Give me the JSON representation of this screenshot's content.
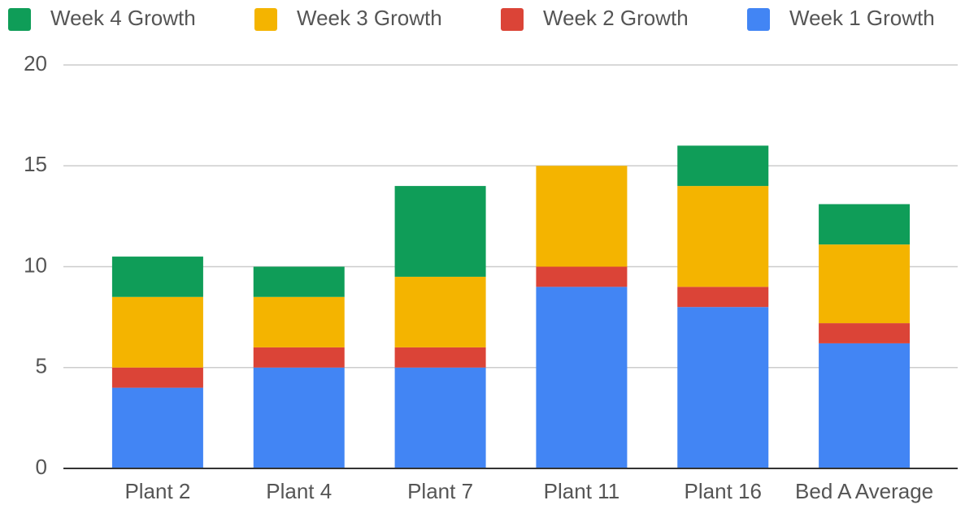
{
  "chart_data": {
    "type": "stacked_bar",
    "categories": [
      "Plant 2",
      "Plant 4",
      "Plant 7",
      "Plant 11",
      "Plant 16",
      "Bed A Average"
    ],
    "series": [
      {
        "name": "Week 1 Growth",
        "color": "#4285f4",
        "values": [
          4,
          5,
          5,
          9,
          8,
          6.2
        ]
      },
      {
        "name": "Week 2 Growth",
        "color": "#db4437",
        "values": [
          1,
          1,
          1,
          1,
          1,
          1
        ]
      },
      {
        "name": "Week 3 Growth",
        "color": "#f4b400",
        "values": [
          3.5,
          2.5,
          3.5,
          5,
          5,
          3.9
        ]
      },
      {
        "name": "Week 4 Growth",
        "color": "#0f9d58",
        "values": [
          2,
          1.5,
          4.5,
          0,
          2,
          2
        ]
      }
    ],
    "ylim": [
      0,
      20
    ],
    "yticks": [
      0,
      5,
      10,
      15,
      20
    ],
    "grid": true,
    "legend": "top"
  }
}
